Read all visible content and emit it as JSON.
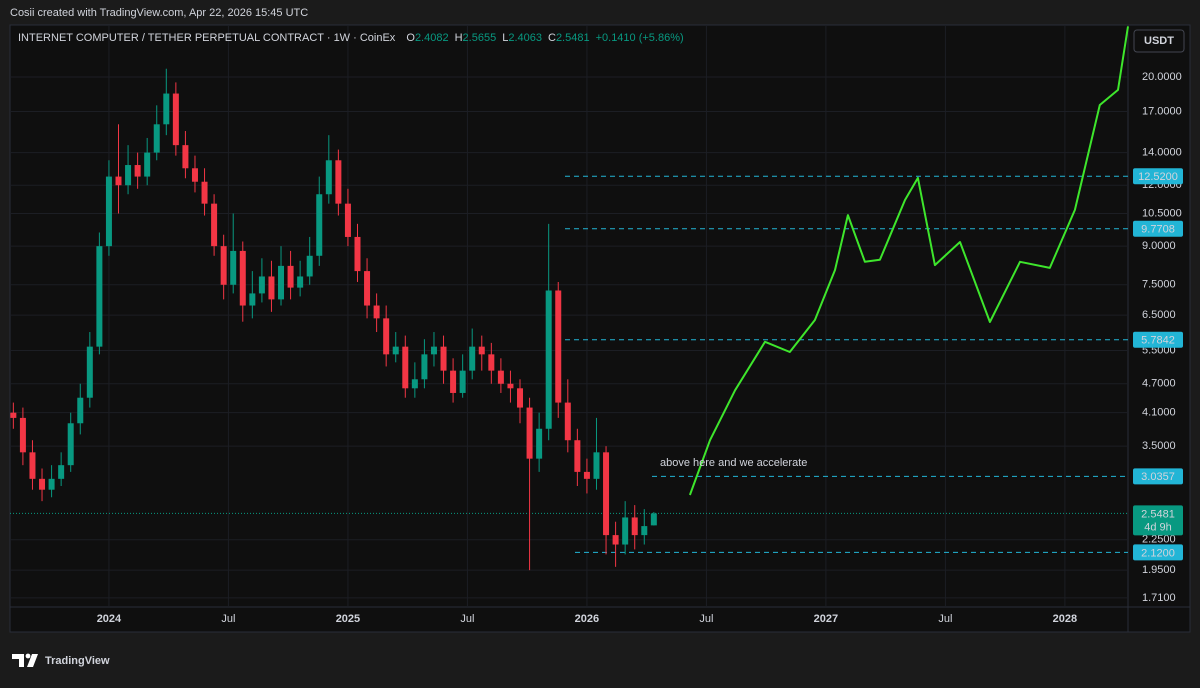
{
  "header": {
    "credit": "Cosii created with TradingView.com, Apr 22, 2026 15:45 UTC",
    "symbol": "INTERNET COMPUTER / TETHER PERPETUAL CONTRACT · 1W · CoinEx",
    "ohlc": [
      {
        "key": "O",
        "value": "2.4082"
      },
      {
        "key": "H",
        "value": "2.5655"
      },
      {
        "key": "L",
        "value": "2.4063"
      },
      {
        "key": "C",
        "value": "2.5481"
      }
    ],
    "change": "+0.1410 (+5.86%)",
    "currency": "USDT",
    "logo": "TradingView"
  },
  "chart_data": {
    "type": "candlestick",
    "log": true,
    "grid": true,
    "up_color": "#089981",
    "down_color": "#f23645",
    "xlim": [
      2023.586,
      2028.264
    ],
    "xticks": [
      {
        "value": 2024,
        "label": "2024"
      },
      {
        "value": 2024.5,
        "label": "Jul"
      },
      {
        "value": 2025,
        "label": "2025"
      },
      {
        "value": 2025.5,
        "label": "Jul"
      },
      {
        "value": 2026,
        "label": "2026"
      },
      {
        "value": 2026.5,
        "label": "Jul"
      },
      {
        "value": 2027,
        "label": "2027"
      },
      {
        "value": 2027.5,
        "label": "Jul"
      },
      {
        "value": 2028,
        "label": "2028"
      }
    ],
    "ylim": [
      1.638,
      25.57
    ],
    "yticks": [
      {
        "value": 20,
        "label": "20.0000"
      },
      {
        "value": 17,
        "label": "17.0000"
      },
      {
        "value": 14,
        "label": "14.0000"
      },
      {
        "value": 12,
        "label": "12.0000"
      },
      {
        "value": 10.5,
        "label": "10.5000"
      },
      {
        "value": 9,
        "label": "9.0000"
      },
      {
        "value": 7.5,
        "label": "7.5000"
      },
      {
        "value": 6.5,
        "label": "6.5000"
      },
      {
        "value": 5.5,
        "label": "5.5000"
      },
      {
        "value": 4.7,
        "label": "4.7000"
      },
      {
        "value": 4.1,
        "label": "4.1000"
      },
      {
        "value": 3.5,
        "label": "3.5000"
      },
      {
        "value": 2.25,
        "label": "2.2500"
      },
      {
        "value": 1.95,
        "label": "1.9500"
      },
      {
        "value": 1.71,
        "label": "1.7100"
      }
    ],
    "x": [
      2023.6,
      2023.64,
      2023.68,
      2023.72,
      2023.76,
      2023.8,
      2023.84,
      2023.88,
      2023.92,
      2023.96,
      2024.0,
      2024.04,
      2024.08,
      2024.12,
      2024.16,
      2024.2,
      2024.24,
      2024.28,
      2024.32,
      2024.36,
      2024.4,
      2024.44,
      2024.48,
      2024.52,
      2024.56,
      2024.6,
      2024.64,
      2024.68,
      2024.72,
      2024.76,
      2024.8,
      2024.84,
      2024.88,
      2024.92,
      2024.96,
      2025.0,
      2025.04,
      2025.08,
      2025.12,
      2025.16,
      2025.2,
      2025.24,
      2025.28,
      2025.32,
      2025.36,
      2025.4,
      2025.44,
      2025.48,
      2025.52,
      2025.56,
      2025.6,
      2025.64,
      2025.68,
      2025.72,
      2025.76,
      2025.8,
      2025.84,
      2025.88,
      2025.92,
      2025.96,
      2026.0,
      2026.04,
      2026.08,
      2026.12,
      2026.16,
      2026.2,
      2026.24,
      2026.28
    ],
    "open": [
      4.1,
      4.0,
      3.4,
      3.0,
      2.85,
      3.0,
      3.2,
      3.9,
      4.4,
      5.6,
      9.0,
      12.5,
      12.0,
      13.2,
      12.5,
      14.0,
      16.0,
      18.5,
      14.5,
      13.0,
      12.2,
      11.0,
      9.0,
      7.5,
      8.8,
      6.8,
      7.2,
      7.8,
      7.0,
      8.2,
      7.4,
      7.8,
      8.6,
      11.5,
      13.5,
      11.0,
      9.4,
      8.0,
      6.8,
      6.4,
      5.4,
      5.6,
      4.6,
      4.8,
      5.4,
      5.6,
      5.0,
      4.5,
      5.0,
      5.6,
      5.4,
      5.0,
      4.7,
      4.6,
      4.2,
      3.3,
      3.8,
      7.3,
      4.3,
      3.6,
      3.1,
      3.0,
      3.4,
      2.3,
      2.2,
      2.5,
      2.3,
      2.4082
    ],
    "high": [
      4.3,
      4.2,
      3.6,
      3.15,
      3.2,
      3.4,
      4.1,
      4.7,
      6.0,
      9.6,
      13.5,
      16.0,
      14.5,
      14.0,
      15.0,
      17.5,
      20.8,
      19.5,
      15.5,
      13.8,
      13.0,
      11.5,
      9.5,
      10.5,
      9.2,
      8.0,
      8.5,
      8.4,
      9.0,
      8.8,
      8.4,
      9.4,
      12.5,
      15.2,
      14.2,
      11.8,
      10.0,
      8.5,
      7.2,
      6.8,
      6.0,
      5.9,
      5.2,
      5.8,
      6.0,
      5.9,
      5.3,
      5.4,
      6.1,
      5.9,
      5.7,
      5.3,
      5.0,
      4.8,
      4.4,
      4.1,
      10.0,
      7.6,
      4.8,
      3.8,
      3.3,
      4.0,
      3.5,
      2.45,
      2.7,
      2.65,
      2.6,
      2.5655
    ],
    "low": [
      3.8,
      3.2,
      2.85,
      2.7,
      2.75,
      2.9,
      3.1,
      3.7,
      4.2,
      5.4,
      8.6,
      10.5,
      11.5,
      11.8,
      12.0,
      13.5,
      15.2,
      13.8,
      12.4,
      11.6,
      10.4,
      8.6,
      7.0,
      7.2,
      6.3,
      6.4,
      6.9,
      6.6,
      6.8,
      7.0,
      7.1,
      7.5,
      8.2,
      11.0,
      10.4,
      9.0,
      7.6,
      6.4,
      6.0,
      5.1,
      5.2,
      4.4,
      4.4,
      4.6,
      5.1,
      4.7,
      4.3,
      4.4,
      4.8,
      5.0,
      4.7,
      4.5,
      4.3,
      3.9,
      1.95,
      3.1,
      3.6,
      4.0,
      3.4,
      2.9,
      2.8,
      2.85,
      2.1,
      1.98,
      2.1,
      2.15,
      2.2,
      2.4063
    ],
    "close": [
      4.0,
      3.4,
      3.0,
      2.85,
      3.0,
      3.2,
      3.9,
      4.4,
      5.6,
      9.0,
      12.5,
      12.0,
      13.2,
      12.5,
      14.0,
      16.0,
      18.5,
      14.5,
      13.0,
      12.2,
      11.0,
      9.0,
      7.5,
      8.8,
      6.8,
      7.2,
      7.8,
      7.0,
      8.2,
      7.4,
      7.8,
      8.6,
      11.5,
      13.5,
      11.0,
      9.4,
      8.0,
      6.8,
      6.4,
      5.4,
      5.6,
      4.6,
      4.8,
      5.4,
      5.6,
      5.0,
      4.5,
      5.0,
      5.6,
      5.4,
      5.0,
      4.7,
      4.6,
      4.2,
      3.3,
      3.8,
      7.3,
      4.3,
      3.6,
      3.1,
      3.0,
      3.4,
      2.3,
      2.2,
      2.5,
      2.3,
      2.4,
      2.5481
    ],
    "projection": {
      "type": "line",
      "color": "#3ee62c",
      "x": [
        2026.431,
        2026.515,
        2026.62,
        2026.745,
        2026.849,
        2026.954,
        2027.038,
        2027.092,
        2027.163,
        2027.226,
        2027.331,
        2027.385,
        2027.456,
        2027.561,
        2027.686,
        2027.812,
        2027.937,
        2028.042,
        2028.146,
        2028.222,
        2028.264
      ],
      "values": [
        2.78,
        3.6,
        4.56,
        5.73,
        5.46,
        6.35,
        8.04,
        10.42,
        8.36,
        8.44,
        11.19,
        12.42,
        8.23,
        9.18,
        6.29,
        8.36,
        8.12,
        10.68,
        17.53,
        18.82,
        25.4
      ]
    },
    "level_color": "#22b5d6",
    "levels": [
      {
        "value": 12.52,
        "label": "12.5200"
      },
      9.7708,
      5.7842,
      3.0357,
      {
        "value": 2.12,
        "label": "2.1200"
      }
    ],
    "last_price": {
      "value": 2.5481,
      "countdown": "4d 9h"
    },
    "annotation": "above here and we accelerate"
  }
}
